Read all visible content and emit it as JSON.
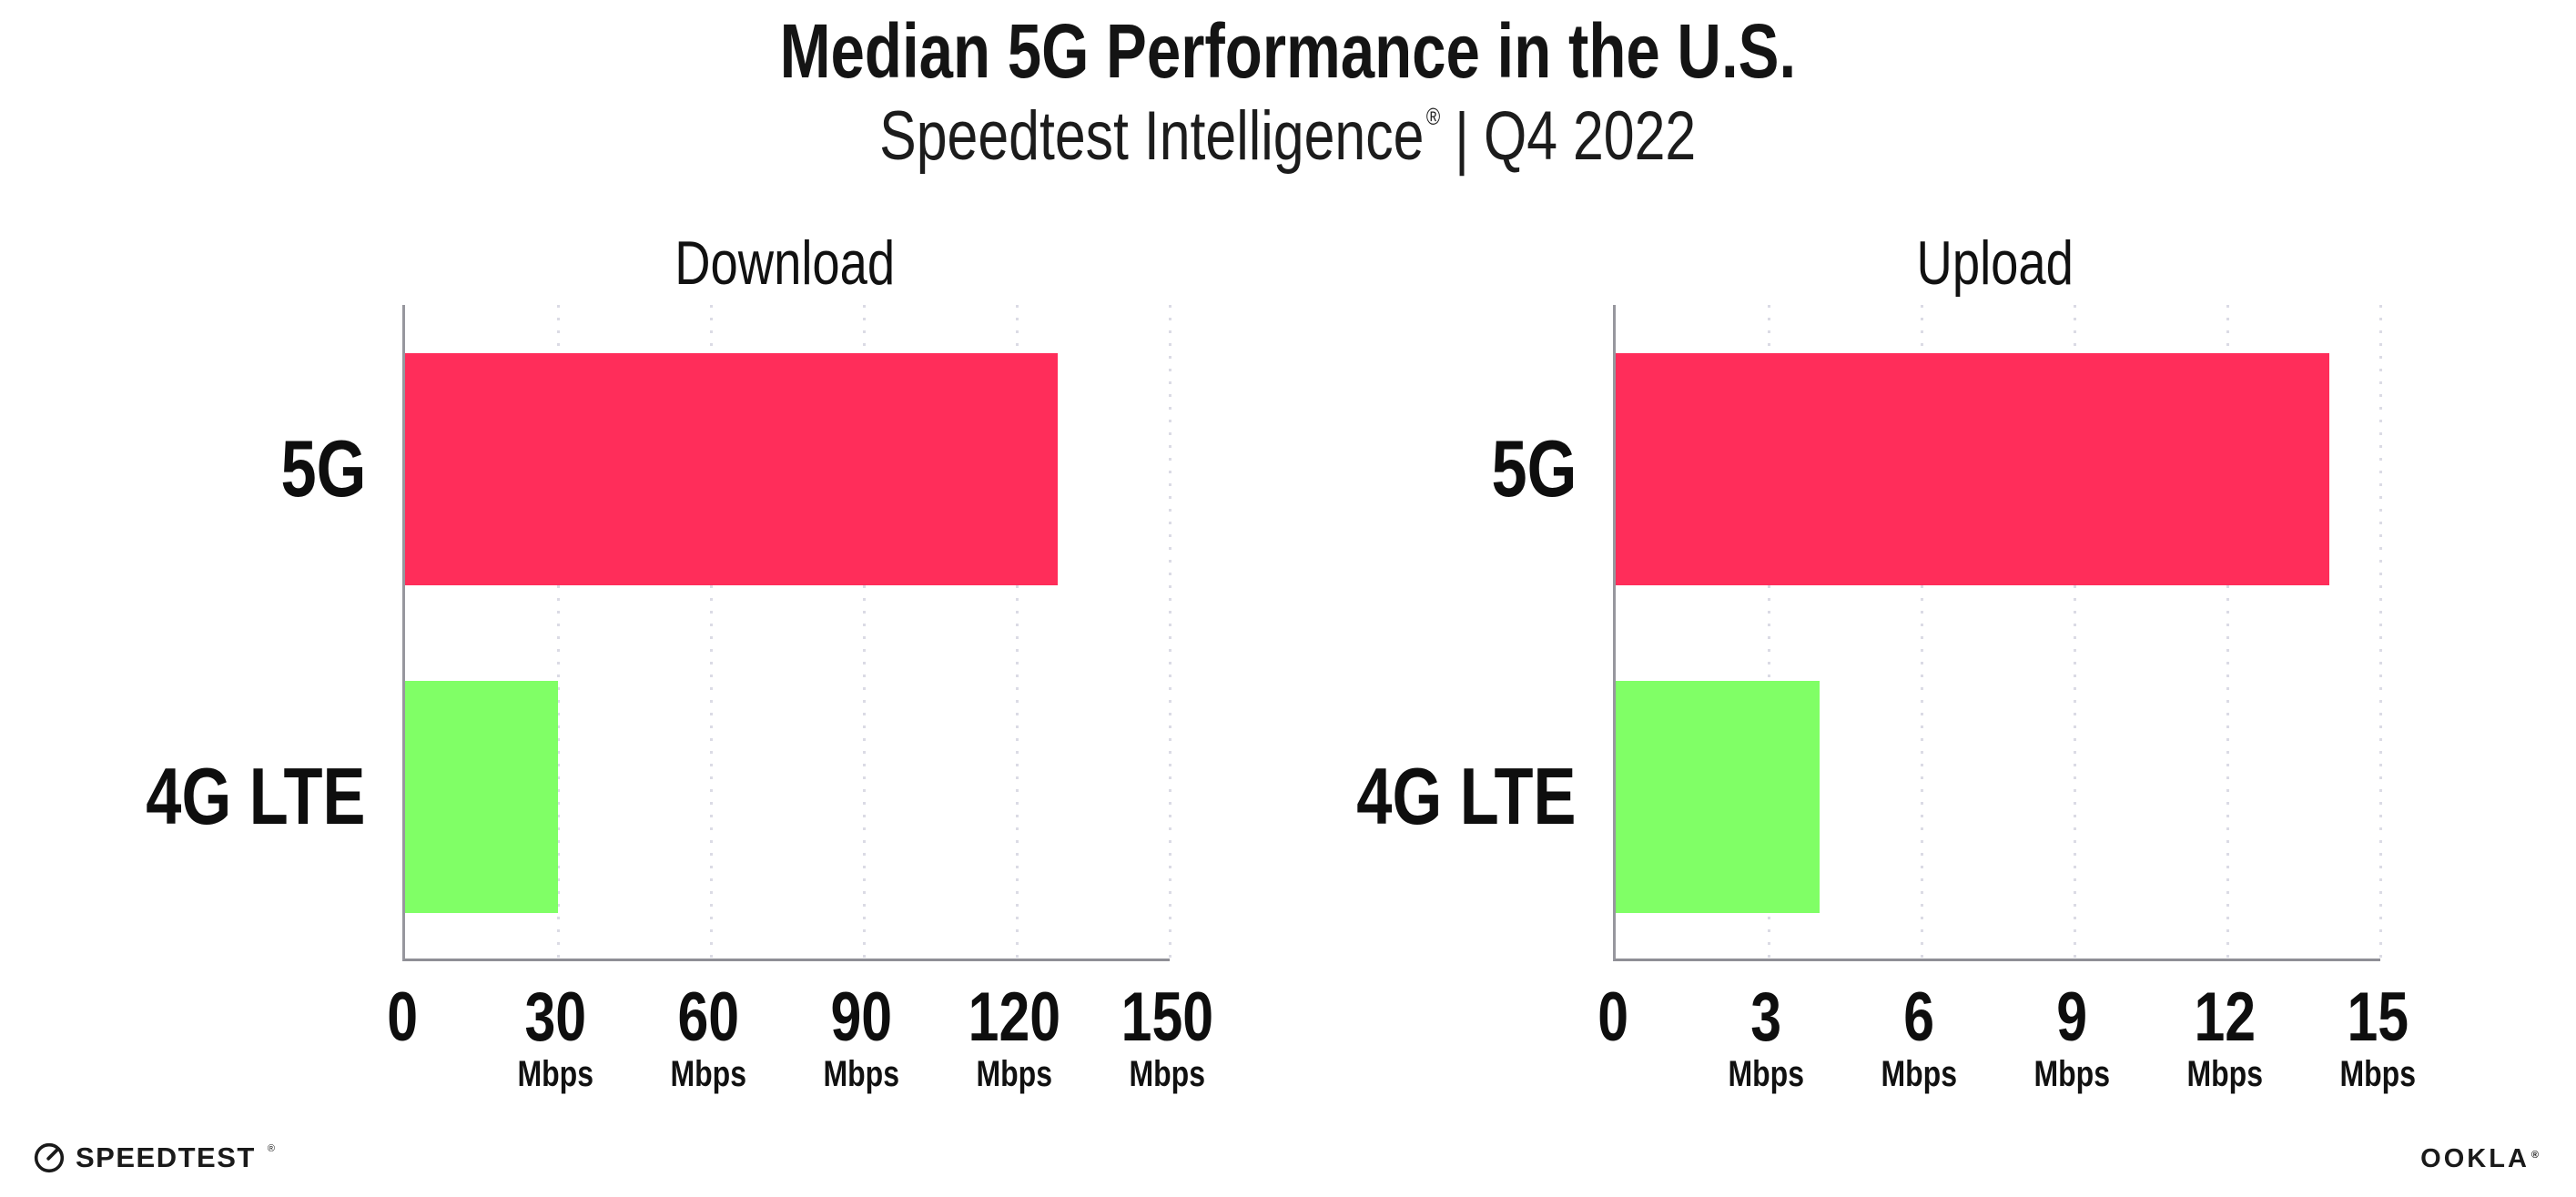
{
  "header": {
    "title": "Median 5G Performance in the U.S.",
    "subtitle": {
      "brand": "Speedtest Intelligence",
      "reg": "®",
      "separator": "|",
      "period": "Q4 2022"
    }
  },
  "chart_data": [
    {
      "type": "bar",
      "orientation": "horizontal",
      "title": "Download",
      "categories": [
        "5G",
        "4G LTE"
      ],
      "values": [
        128,
        30
      ],
      "unit": "Mbps",
      "xlim": [
        0,
        150
      ],
      "xticks": [
        0,
        30,
        60,
        90,
        120,
        150
      ],
      "bar_colors": [
        "#FF2D5A",
        "#80FF66"
      ],
      "grid": "dotted-vertical-gridlines",
      "legend": "none"
    },
    {
      "type": "bar",
      "orientation": "horizontal",
      "title": "Upload",
      "categories": [
        "5G",
        "4G LTE"
      ],
      "values": [
        14,
        4
      ],
      "unit": "Mbps",
      "xlim": [
        0,
        15
      ],
      "xticks": [
        0,
        3,
        6,
        9,
        12,
        15
      ],
      "bar_colors": [
        "#FF2D5A",
        "#80FF66"
      ],
      "grid": "dotted-vertical-gridlines",
      "legend": "none"
    }
  ],
  "footer": {
    "speedtest_label": "SPEEDTEST",
    "speedtest_reg": "®",
    "ookla_label": "OOKLA",
    "ookla_reg": "®"
  },
  "colors": {
    "bar_5g": "#FF2D5A",
    "bar_4g_lte": "#80FF66",
    "axis": "#97979e",
    "gridline_dot": "#dbdbe5",
    "text": "#141414",
    "background": "#ffffff"
  }
}
